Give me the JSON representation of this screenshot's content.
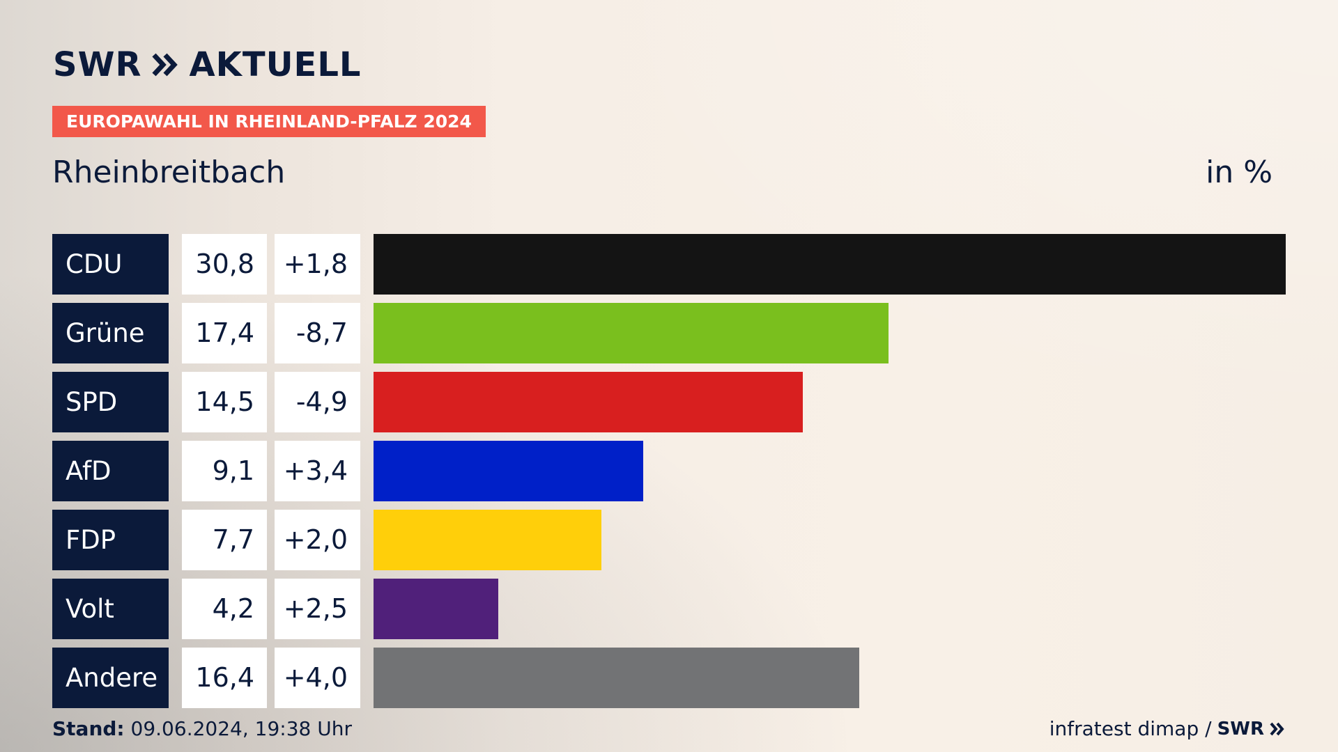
{
  "brand": {
    "swr": "SWR",
    "aktuell": "AKTUELL",
    "chevron_icon": "double-chevron-right-icon",
    "color": "#0b1a3a"
  },
  "header": {
    "tag": "EUROPAWAHL IN RHEINLAND-PFALZ 2024",
    "tag_color": "#f2584a",
    "subtitle": "Rheinbreitbach",
    "unit": "in %"
  },
  "chart_data": {
    "type": "bar",
    "orientation": "horizontal",
    "categories": [
      "CDU",
      "Grüne",
      "SPD",
      "AfD",
      "FDP",
      "Volt",
      "Andere"
    ],
    "values": [
      30.8,
      17.4,
      14.5,
      9.1,
      7.7,
      4.2,
      16.4
    ],
    "values_label": [
      "30,8",
      "17,4",
      "14,5",
      "9,1",
      "7,7",
      "4,2",
      "16,4"
    ],
    "diff_label": [
      "+1,8",
      "-8,7",
      "-4,9",
      "+3,4",
      "+2,0",
      "+2,5",
      "+4,0"
    ],
    "colors": [
      "#141414",
      "#7abf1e",
      "#d81f1f",
      "#0020c8",
      "#ffcf0a",
      "#50207a",
      "#727375"
    ],
    "unit": "in %",
    "xlim": [
      0,
      30.8
    ],
    "grid": false,
    "legend": "none"
  },
  "footer": {
    "stand_label": "Stand:",
    "stand_value": "09.06.2024, 19:38 Uhr",
    "source": "infratest dimap /",
    "source_brand": "SWR"
  }
}
